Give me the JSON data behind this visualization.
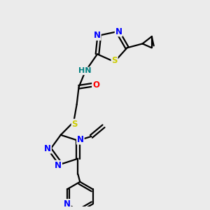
{
  "bg_color": "#ebebeb",
  "atom_colors": {
    "N": "#0000ff",
    "S": "#cccc00",
    "O": "#ff0000",
    "C": "#000000",
    "H": "#008080"
  },
  "bond_color": "#000000",
  "bond_width": 1.6,
  "fig_size": [
    3.0,
    3.0
  ],
  "dpi": 100
}
